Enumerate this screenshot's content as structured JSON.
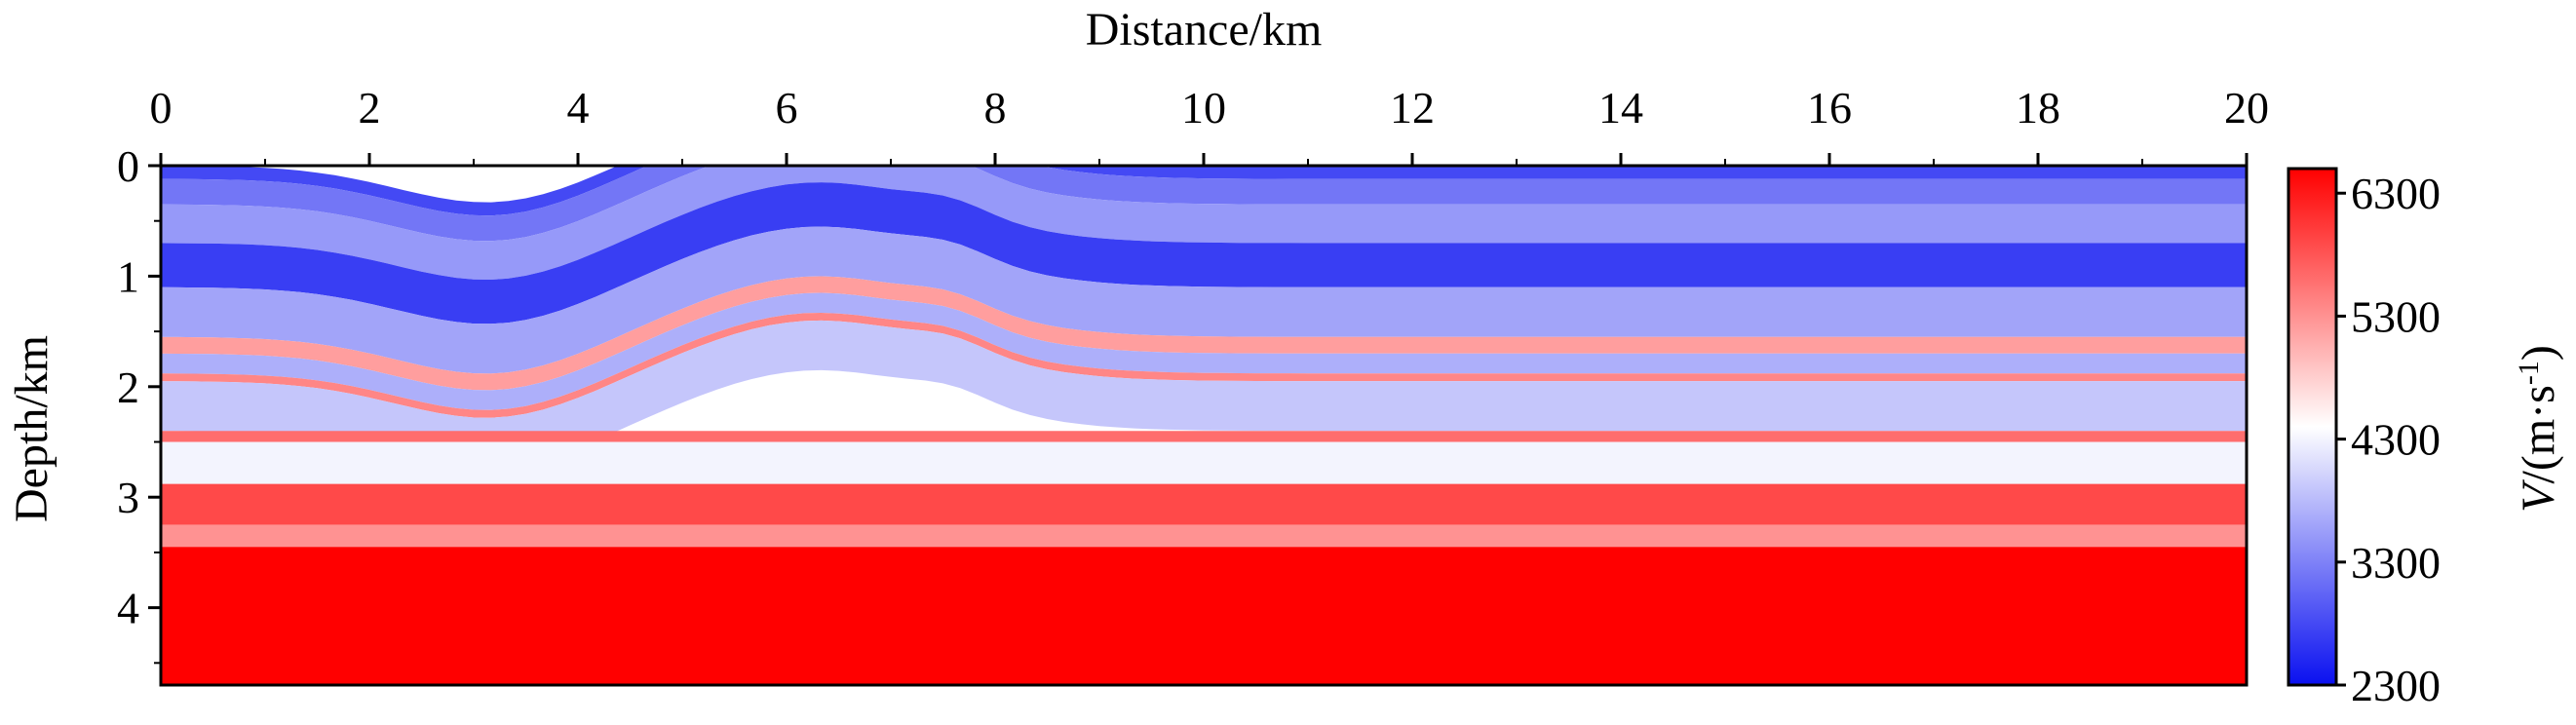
{
  "chart_data": {
    "type": "heatmap",
    "title": "",
    "xlabel": "Distance/km",
    "ylabel": "Depth/km",
    "colorbar_label_italic": "V",
    "colorbar_label_rest": "/(m·s",
    "colorbar_label_exp": "-1",
    "colorbar_label_close": ")",
    "xlim": [
      0,
      20
    ],
    "ylim": [
      4.7,
      0
    ],
    "x_ticks": [
      0,
      2,
      4,
      6,
      8,
      10,
      12,
      14,
      16,
      18,
      20
    ],
    "y_ticks": [
      0,
      1,
      2,
      3,
      4
    ],
    "x_tick_labels": [
      "0",
      "2",
      "4",
      "6",
      "8",
      "10",
      "12",
      "14",
      "16",
      "18",
      "20"
    ],
    "y_tick_labels": [
      "0",
      "1",
      "2",
      "3",
      "4"
    ],
    "colorbar_range": [
      2300,
      6500
    ],
    "colorbar_ticks": [
      2300,
      3300,
      4300,
      5300,
      6300
    ],
    "colorbar_tick_labels": [
      "2300",
      "3300",
      "4300",
      "5300",
      "6300"
    ],
    "colormap": [
      "#0a10f0",
      "#ffffff",
      "#ff0000"
    ],
    "layers": [
      {
        "top": 0.0,
        "bottom": 0.12,
        "velocity": 2800,
        "shape": "fold"
      },
      {
        "top": 0.12,
        "bottom": 0.35,
        "velocity": 3200,
        "shape": "fold"
      },
      {
        "top": 0.35,
        "bottom": 0.7,
        "velocity": 3500,
        "shape": "fold"
      },
      {
        "top": 0.7,
        "bottom": 1.1,
        "velocity": 2700,
        "shape": "fold"
      },
      {
        "top": 1.1,
        "bottom": 1.55,
        "velocity": 3600,
        "shape": "fold"
      },
      {
        "top": 1.55,
        "bottom": 1.7,
        "velocity": 5200,
        "shape": "fold"
      },
      {
        "top": 1.7,
        "bottom": 1.88,
        "velocity": 3700,
        "shape": "fold"
      },
      {
        "top": 1.88,
        "bottom": 1.95,
        "velocity": 5400,
        "shape": "fold"
      },
      {
        "top": 1.95,
        "bottom": 2.4,
        "velocity": 3900,
        "shape": "fold"
      },
      {
        "top": 2.4,
        "bottom": 2.5,
        "velocity": 5600,
        "shape": "flat"
      },
      {
        "top": 2.5,
        "bottom": 2.88,
        "velocity": 4300,
        "shape": "flat"
      },
      {
        "top": 2.88,
        "bottom": 3.25,
        "velocity": 5900,
        "shape": "flat"
      },
      {
        "top": 3.25,
        "bottom": 3.45,
        "velocity": 5300,
        "shape": "flat"
      },
      {
        "top": 3.45,
        "bottom": 4.7,
        "velocity": 6500,
        "shape": "flat"
      }
    ]
  }
}
